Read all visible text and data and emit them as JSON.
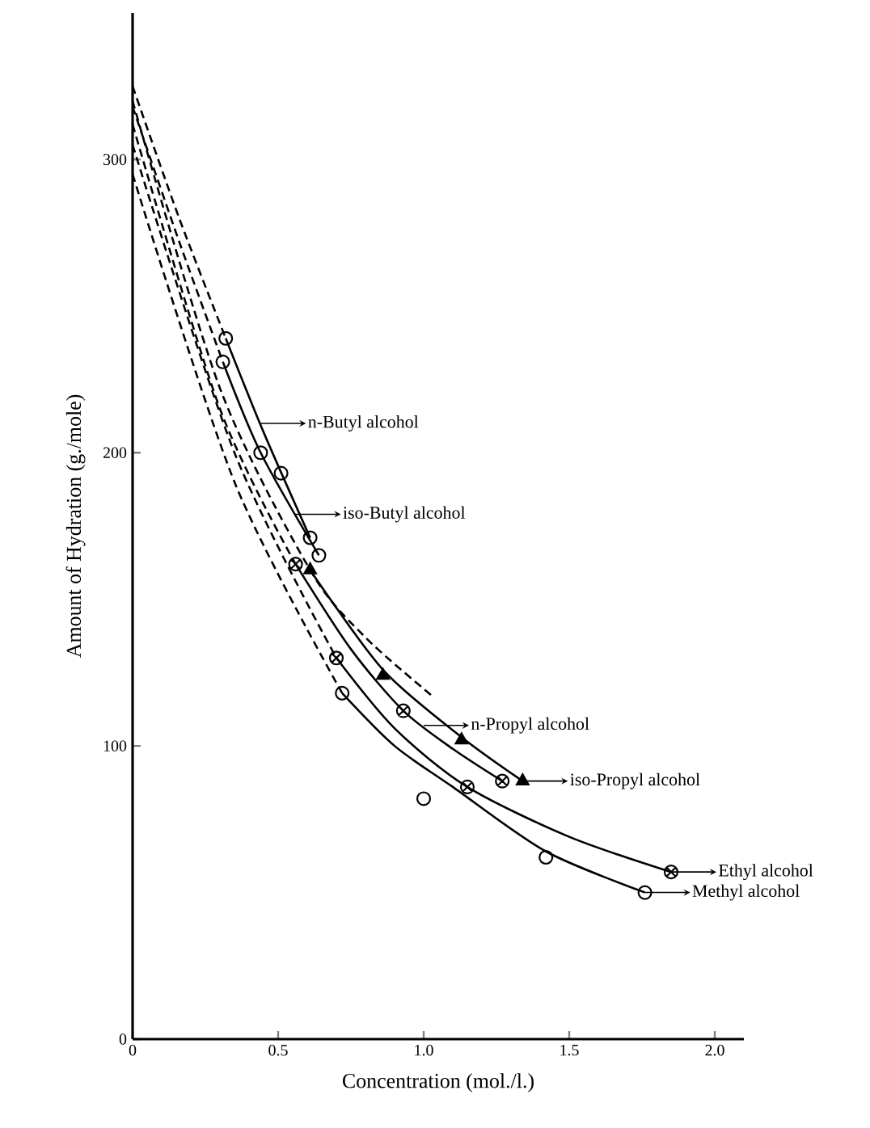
{
  "chart_data": {
    "type": "scatter",
    "xlabel": "Concentration (mol./l.)",
    "ylabel": "Amount of Hydration (g./mole)",
    "xlim": [
      0,
      2.1
    ],
    "ylim": [
      0,
      350
    ],
    "xticks": [
      0,
      0.5,
      {
        "value": 1,
        "label": "1.0"
      },
      1.5,
      {
        "value": 2,
        "label": "2.0"
      }
    ],
    "yticks": [
      0,
      100,
      200,
      300
    ],
    "annotations": [
      {
        "text": "n-Butyl alcohol",
        "x": 0.44,
        "y": 210
      },
      {
        "text": "iso-Butyl alcohol",
        "x": 0.56,
        "y": 179
      },
      {
        "text": "n-Propyl alcohol",
        "x": 1.0,
        "y": 107
      },
      {
        "text": "iso-Propyl alcohol",
        "x": 1.34,
        "y": 88
      },
      {
        "text": "Ethyl alcohol",
        "x": 1.85,
        "y": 57
      },
      {
        "text": "Methyl alcohol",
        "x": 1.76,
        "y": 50
      }
    ],
    "series": [
      {
        "type": "line",
        "line_style": "dashed",
        "color": "#000000",
        "x": [
          0,
          0.16,
          0.32
        ],
        "values": [
          325,
          280,
          239
        ]
      },
      {
        "type": "line",
        "line_style": "dashed",
        "color": "#000000",
        "x": [
          0,
          0.16,
          0.31
        ],
        "values": [
          318,
          272,
          231
        ]
      },
      {
        "type": "line",
        "line_style": "dashed",
        "color": "#000000",
        "x": [
          0,
          0.3,
          0.56
        ],
        "values": [
          312,
          215,
          162
        ]
      },
      {
        "type": "line",
        "line_style": "dashed",
        "color": "#000000",
        "x": [
          0,
          0.3,
          0.61,
          0.8,
          1.03
        ],
        "values": [
          320,
          222,
          160,
          137,
          117
        ]
      },
      {
        "type": "line",
        "line_style": "dashed",
        "color": "#000000",
        "x": [
          0,
          0.35,
          0.7
        ],
        "values": [
          305,
          200,
          130
        ]
      },
      {
        "type": "line",
        "line_style": "dashed",
        "color": "#000000",
        "x": [
          0,
          0.35,
          0.72
        ],
        "values": [
          295,
          190,
          118
        ]
      },
      {
        "type": "line",
        "line_style": "solid",
        "color": "#000000",
        "x": [
          0.32,
          0.45,
          0.61
        ],
        "values": [
          239,
          207,
          171
        ]
      },
      {
        "type": "line",
        "line_style": "solid",
        "color": "#000000",
        "x": [
          0.31,
          0.44,
          0.64
        ],
        "values": [
          231,
          200,
          165
        ]
      },
      {
        "type": "line",
        "line_style": "solid",
        "color": "#000000",
        "x": [
          0.56,
          0.75,
          0.93,
          1.1,
          1.27
        ],
        "values": [
          162,
          133,
          112,
          99,
          88
        ]
      },
      {
        "type": "line",
        "line_style": "solid",
        "color": "#000000",
        "x": [
          0.61,
          0.86,
          1.13,
          1.34
        ],
        "values": [
          160,
          126,
          103,
          88
        ]
      },
      {
        "type": "line",
        "line_style": "solid",
        "color": "#000000",
        "x": [
          0.7,
          0.9,
          1.15,
          1.5,
          1.85
        ],
        "values": [
          130,
          106,
          86,
          69,
          57
        ]
      },
      {
        "type": "line",
        "line_style": "solid",
        "color": "#000000",
        "x": [
          0.72,
          0.9,
          1.1,
          1.42,
          1.76
        ],
        "values": [
          118,
          100,
          86,
          64,
          50
        ]
      },
      {
        "marker": "circle",
        "color": "#000000",
        "x": [
          0.32,
          0.51,
          0.61
        ],
        "values": [
          239,
          193,
          171
        ]
      },
      {
        "marker": "circle",
        "color": "#000000",
        "x": [
          0.31,
          0.44,
          0.64
        ],
        "values": [
          231,
          200,
          165
        ]
      },
      {
        "marker": "cross",
        "color": "#000000",
        "x": [
          0.56,
          0.93,
          1.27
        ],
        "values": [
          162,
          112,
          88
        ]
      },
      {
        "marker": "triangle",
        "color": "#000000",
        "x": [
          0.61,
          0.86,
          1.13,
          1.34
        ],
        "values": [
          160,
          124,
          102,
          88
        ]
      },
      {
        "marker": "cross",
        "color": "#000000",
        "x": [
          0.7,
          1.15,
          1.85
        ],
        "values": [
          130,
          86,
          57
        ]
      },
      {
        "marker": "circle",
        "color": "#000000",
        "x": [
          0.72,
          1.0,
          1.42,
          1.76
        ],
        "values": [
          118,
          82,
          62,
          50
        ]
      }
    ]
  }
}
